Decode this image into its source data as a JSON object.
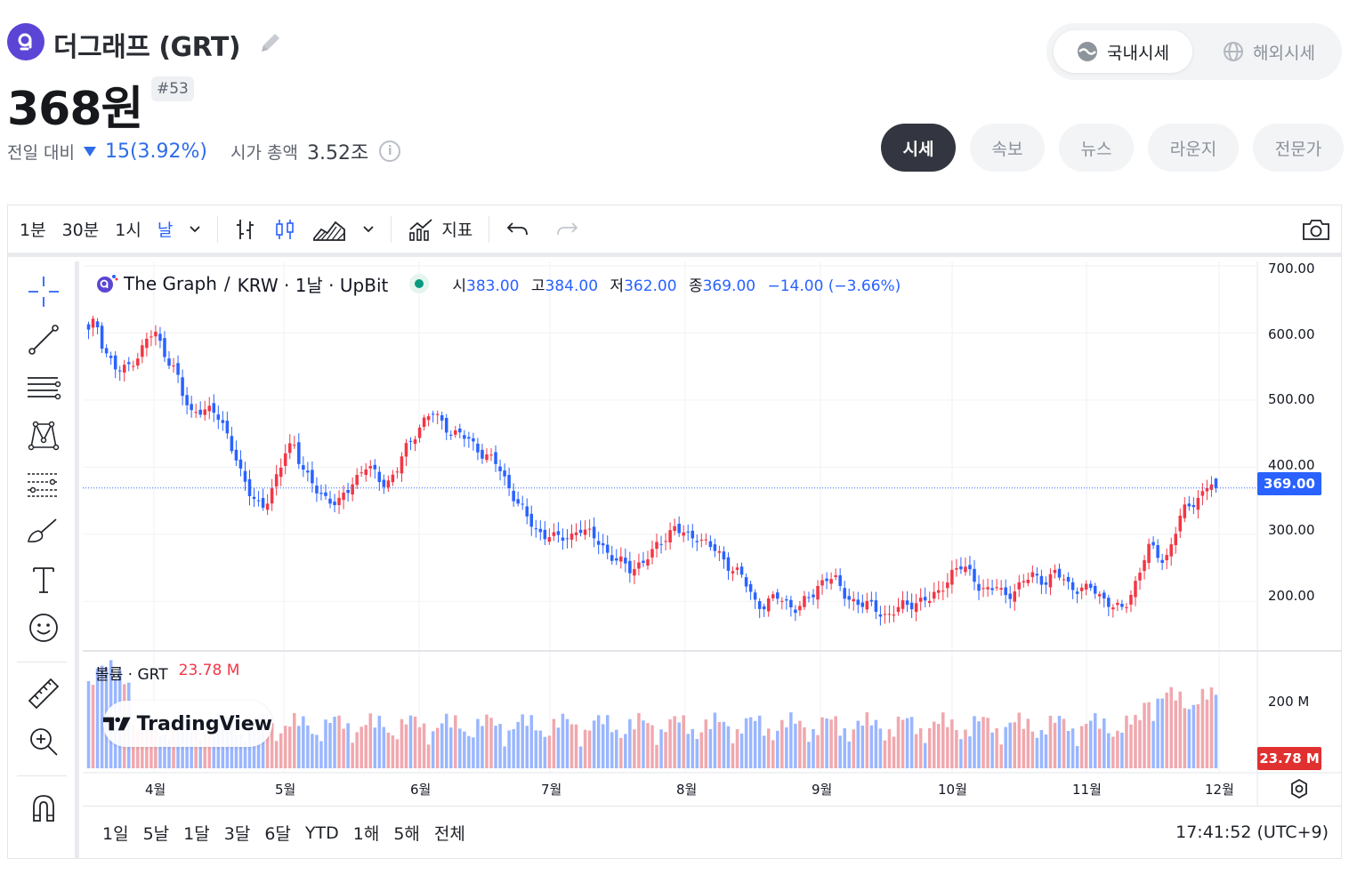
{
  "coin": {
    "name": "더그래프 (GRT)",
    "price": "368원",
    "rank": "#53",
    "change_label": "전일 대비",
    "change_value": "15(3.92%)",
    "market_cap_label": "시가 총액",
    "market_cap_value": "3.52조",
    "info": "i"
  },
  "market_toggle": {
    "domestic": "국내시세",
    "overseas": "해외시세"
  },
  "tabs": [
    "시세",
    "속보",
    "뉴스",
    "라운지",
    "전문가"
  ],
  "toolbar": {
    "intervals": [
      "1분",
      "30분",
      "1시",
      "날"
    ],
    "indicators_label": "지표"
  },
  "legend": {
    "symbol": "The Graph",
    "pair": "KRW · 1날 · UpBit",
    "open_label": "시",
    "open": "383.00",
    "high_label": "고",
    "high": "384.00",
    "low_label": "저",
    "low": "362.00",
    "close_label": "종",
    "close": "369.00",
    "change": "−14.00 (−3.66%)"
  },
  "volume_legend": {
    "label": "볼륨 · GRT",
    "value": "23.78 M"
  },
  "watermark": "TradingView",
  "price_axis": [
    "700.00",
    "600.00",
    "500.00",
    "400.00",
    "300.00",
    "200.00"
  ],
  "last_price_tag": "369.00",
  "volume_axis": "200 M",
  "last_volume_tag": "23.78 M",
  "time_axis": [
    "4월",
    "5월",
    "6월",
    "7월",
    "8월",
    "9월",
    "10월",
    "11월",
    "12월"
  ],
  "ranges": [
    "1일",
    "5날",
    "1달",
    "3달",
    "6달",
    "YTD",
    "1해",
    "5해",
    "전체"
  ],
  "clock": "17:41:52 (UTC+9)",
  "colors": {
    "up": "#f23645",
    "down": "#2962ff",
    "up_volume": "#f0a8ae",
    "down_volume": "#9ab6ff",
    "accent": "#2962ff"
  },
  "chart_data": {
    "type": "candlestick",
    "price_range": [
      150,
      700
    ],
    "volume_axis_label": "200 M",
    "month_labels": [
      "4월",
      "5월",
      "6월",
      "7월",
      "8월",
      "9월",
      "10월",
      "11월",
      "12월"
    ],
    "close_series": [
      600,
      620,
      580,
      560,
      540,
      545,
      560,
      570,
      590,
      600,
      580,
      560,
      540,
      500,
      480,
      490,
      485,
      480,
      470,
      450,
      420,
      380,
      360,
      350,
      345,
      360,
      390,
      430,
      440,
      400,
      380,
      370,
      360,
      350,
      340,
      360,
      380,
      390,
      400,
      390,
      380,
      380,
      390,
      420,
      440,
      460,
      470,
      480,
      470,
      460,
      450,
      445,
      440,
      430,
      420,
      410,
      400,
      380,
      360,
      340,
      320,
      310,
      300,
      300,
      290,
      295,
      300,
      310,
      300,
      295,
      290,
      270,
      260,
      255,
      250,
      255,
      260,
      270,
      290,
      300,
      310,
      300,
      295,
      300,
      290,
      280,
      270,
      260,
      250,
      240,
      220,
      200,
      195,
      200,
      205,
      200,
      195,
      190,
      200,
      210,
      230,
      240,
      230,
      210,
      205,
      200,
      195,
      190,
      185,
      180,
      185,
      190,
      195,
      200,
      205,
      200,
      210,
      230,
      245,
      250,
      245,
      235,
      220,
      215,
      220,
      210,
      215,
      220,
      230,
      240,
      235,
      230,
      240,
      235,
      225,
      220,
      215,
      220,
      210,
      205,
      190,
      185,
      200,
      230,
      260,
      280,
      270,
      260,
      290,
      320,
      340,
      350,
      360,
      375,
      369
    ],
    "last": {
      "open": 383.0,
      "high": 384.0,
      "low": 362.0,
      "close": 369.0,
      "change": -14.0,
      "change_pct": -3.66
    }
  }
}
